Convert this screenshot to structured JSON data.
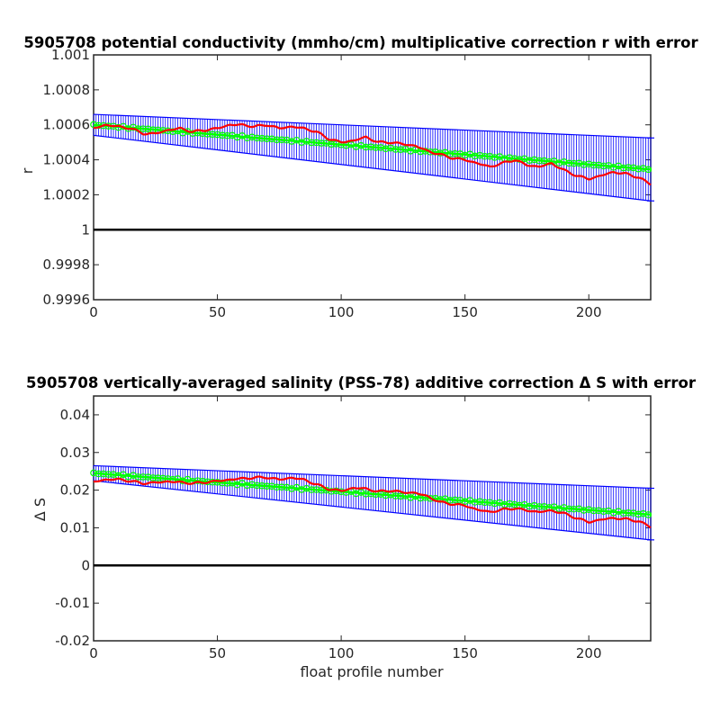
{
  "chart_data": [
    {
      "type": "line",
      "title": "5905708 potential conductivity (mmho/cm) multiplicative correction r with error",
      "xlabel": "",
      "ylabel": "r",
      "xlim": [
        0,
        225
      ],
      "ylim": [
        0.9996,
        1.001
      ],
      "xticks": [
        0,
        50,
        100,
        150,
        200
      ],
      "xtick_labels": [
        "0",
        "50",
        "100",
        "150",
        "200"
      ],
      "yticks": [
        0.9996,
        0.9998,
        1,
        1.0002,
        1.0004,
        1.0006,
        1.0008,
        1.001
      ],
      "ytick_labels": [
        "0.9996",
        "0.9998",
        "1",
        "1.0002",
        "1.0004",
        "1.0006",
        "1.0008",
        "1.001"
      ],
      "grid": false,
      "reference_line": {
        "y": 1,
        "color": "#000000"
      },
      "series": [
        {
          "role": "fit-with-error-bars",
          "color": "#00ff00",
          "error_color": "#0000ff",
          "center": [
            [
              0,
              1.0006
            ],
            [
              225,
              1.000345
            ]
          ],
          "upper": [
            [
              0,
              1.00066
            ],
            [
              225,
              1.000525
            ]
          ],
          "lower": [
            [
              0,
              1.00054
            ],
            [
              225,
              1.000165
            ]
          ]
        },
        {
          "role": "observed",
          "color": "#ff0000",
          "points": [
            [
              0,
              1.00058
            ],
            [
              5,
              1.0006
            ],
            [
              10,
              1.00059
            ],
            [
              15,
              1.00058
            ],
            [
              20,
              1.00055
            ],
            [
              25,
              1.00055
            ],
            [
              30,
              1.00057
            ],
            [
              35,
              1.00058
            ],
            [
              40,
              1.00056
            ],
            [
              45,
              1.00057
            ],
            [
              50,
              1.00058
            ],
            [
              55,
              1.0006
            ],
            [
              60,
              1.0006
            ],
            [
              65,
              1.00059
            ],
            [
              70,
              1.0006
            ],
            [
              75,
              1.00058
            ],
            [
              80,
              1.00059
            ],
            [
              85,
              1.00058
            ],
            [
              90,
              1.00056
            ],
            [
              95,
              1.00052
            ],
            [
              100,
              1.0005
            ],
            [
              105,
              1.00051
            ],
            [
              110,
              1.00053
            ],
            [
              115,
              1.0005
            ],
            [
              120,
              1.0005
            ],
            [
              125,
              1.00049
            ],
            [
              130,
              1.00048
            ],
            [
              135,
              1.00045
            ],
            [
              140,
              1.00043
            ],
            [
              145,
              1.00041
            ],
            [
              150,
              1.0004
            ],
            [
              155,
              1.00038
            ],
            [
              160,
              1.00036
            ],
            [
              165,
              1.00038
            ],
            [
              170,
              1.0004
            ],
            [
              175,
              1.00037
            ],
            [
              180,
              1.00036
            ],
            [
              185,
              1.00038
            ],
            [
              190,
              1.00034
            ],
            [
              195,
              1.00031
            ],
            [
              200,
              1.00029
            ],
            [
              205,
              1.00031
            ],
            [
              210,
              1.00033
            ],
            [
              215,
              1.00032
            ],
            [
              220,
              1.0003
            ],
            [
              225,
              1.00026
            ]
          ]
        }
      ]
    },
    {
      "type": "line",
      "title": "5905708 vertically-averaged salinity (PSS-78) additive correction Δ S with error",
      "xlabel": "float profile number",
      "ylabel": "Δ S",
      "xlim": [
        0,
        225
      ],
      "ylim": [
        -0.02,
        0.045
      ],
      "xticks": [
        0,
        50,
        100,
        150,
        200
      ],
      "xtick_labels": [
        "0",
        "50",
        "100",
        "150",
        "200"
      ],
      "yticks": [
        -0.02,
        -0.01,
        0,
        0.01,
        0.02,
        0.03,
        0.04
      ],
      "ytick_labels": [
        "-0.02",
        "-0.01",
        "0",
        "0.01",
        "0.02",
        "0.03",
        "0.04"
      ],
      "grid": false,
      "reference_line": {
        "y": 0,
        "color": "#000000"
      },
      "series": [
        {
          "role": "fit-with-error-bars",
          "color": "#00ff00",
          "error_color": "#0000ff",
          "center": [
            [
              0,
              0.0245
            ],
            [
              225,
              0.0135
            ]
          ],
          "upper": [
            [
              0,
              0.0265
            ],
            [
              225,
              0.0205
            ]
          ],
          "lower": [
            [
              0,
              0.0225
            ],
            [
              225,
              0.0068
            ]
          ]
        },
        {
          "role": "observed",
          "color": "#ff0000",
          "points": [
            [
              0,
              0.0222
            ],
            [
              5,
              0.0228
            ],
            [
              10,
              0.0229
            ],
            [
              15,
              0.0224
            ],
            [
              20,
              0.0218
            ],
            [
              25,
              0.022
            ],
            [
              30,
              0.0223
            ],
            [
              35,
              0.0221
            ],
            [
              40,
              0.0218
            ],
            [
              45,
              0.0221
            ],
            [
              50,
              0.0224
            ],
            [
              55,
              0.0228
            ],
            [
              60,
              0.0231
            ],
            [
              65,
              0.0233
            ],
            [
              70,
              0.0234
            ],
            [
              75,
              0.0228
            ],
            [
              80,
              0.0233
            ],
            [
              85,
              0.0228
            ],
            [
              90,
              0.0215
            ],
            [
              95,
              0.0203
            ],
            [
              100,
              0.0198
            ],
            [
              105,
              0.0206
            ],
            [
              110,
              0.0204
            ],
            [
              115,
              0.0196
            ],
            [
              120,
              0.0199
            ],
            [
              125,
              0.0194
            ],
            [
              130,
              0.0193
            ],
            [
              135,
              0.0183
            ],
            [
              140,
              0.0168
            ],
            [
              145,
              0.0163
            ],
            [
              150,
              0.0159
            ],
            [
              155,
              0.0148
            ],
            [
              160,
              0.0142
            ],
            [
              165,
              0.0148
            ],
            [
              170,
              0.0152
            ],
            [
              175,
              0.0146
            ],
            [
              180,
              0.0142
            ],
            [
              185,
              0.0146
            ],
            [
              190,
              0.0138
            ],
            [
              195,
              0.0126
            ],
            [
              200,
              0.0115
            ],
            [
              205,
              0.0122
            ],
            [
              210,
              0.0126
            ],
            [
              215,
              0.0123
            ],
            [
              220,
              0.0118
            ],
            [
              225,
              0.0102
            ]
          ]
        }
      ]
    }
  ]
}
